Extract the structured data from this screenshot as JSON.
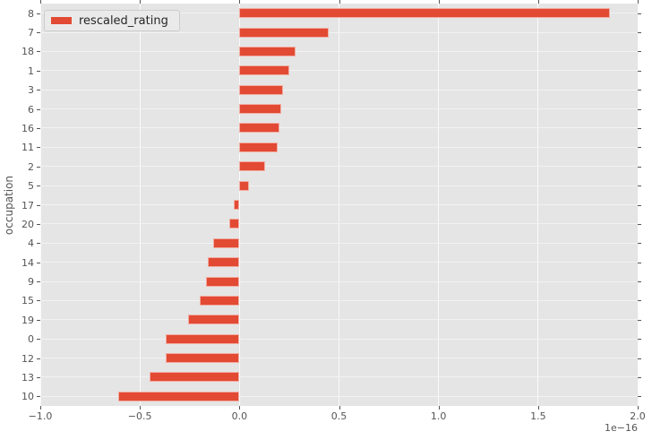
{
  "chart_data": {
    "type": "bar",
    "orientation": "horizontal",
    "title": "",
    "xlabel": "",
    "ylabel": "occupation",
    "series_name": "rescaled_rating",
    "categories": [
      "8",
      "7",
      "18",
      "1",
      "3",
      "6",
      "16",
      "11",
      "2",
      "5",
      "17",
      "20",
      "4",
      "14",
      "9",
      "15",
      "19",
      "0",
      "12",
      "13",
      "10"
    ],
    "values": [
      1.86,
      0.45,
      0.28,
      0.25,
      0.22,
      0.21,
      0.2,
      0.19,
      0.13,
      0.05,
      -0.03,
      -0.05,
      -0.13,
      -0.16,
      -0.17,
      -0.2,
      -0.26,
      -0.37,
      -0.37,
      -0.45,
      -0.61
    ],
    "value_unit_scale": "1e-16",
    "xlim": [
      -1.0,
      2.0
    ],
    "x_ticks": [
      -1.0,
      -0.5,
      0.0,
      0.5,
      1.0,
      1.5,
      2.0
    ],
    "x_tick_labels": [
      "−1.0",
      "−0.5",
      "0.0",
      "0.5",
      "1.0",
      "1.5",
      "2.0"
    ],
    "offset_label": "1e−16",
    "grid": true,
    "legend": {
      "label": "rescaled_rating",
      "position": "upper left",
      "color": "#e24a33"
    },
    "colors": {
      "bar": "#e24a33",
      "plot_background": "#e5e5e5",
      "figure_background": "#ffffff",
      "gridline": "#fafafa",
      "tick_text": "#555555",
      "legend_text": "#262626"
    }
  }
}
